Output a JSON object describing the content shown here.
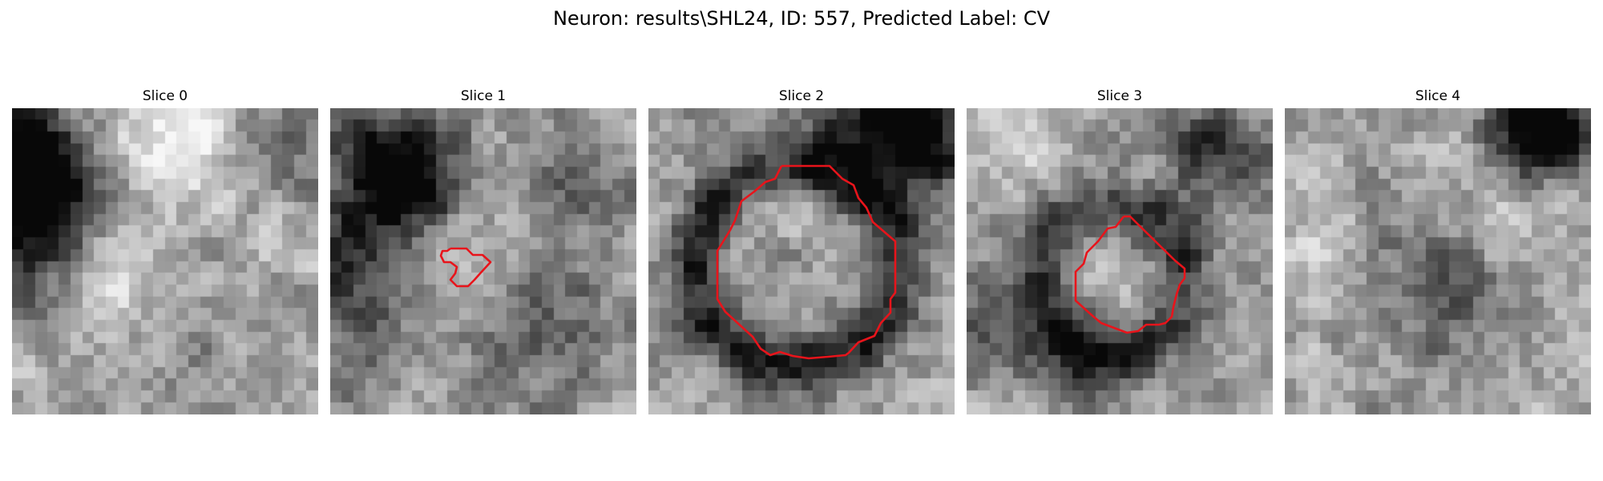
{
  "figure": {
    "title": "Neuron: results\\SHL24, ID: 557, Predicted Label: CV"
  },
  "slices": [
    {
      "label": "Slice 0",
      "has_roi": false,
      "pattern": {
        "seed": 11,
        "dark_spots": [
          [
            2,
            4,
            5,
            0.55
          ],
          [
            0,
            6,
            4,
            0.4
          ],
          [
            1,
            12,
            4,
            0.3
          ],
          [
            22,
            3,
            3,
            0.25
          ],
          [
            14,
            22,
            6,
            0.15
          ]
        ],
        "bright_spots": [
          [
            8,
            1,
            4,
            0.25
          ],
          [
            14,
            3,
            3,
            0.3
          ],
          [
            7,
            14,
            3,
            0.25
          ]
        ],
        "base": 0.68
      }
    },
    {
      "label": "Slice 1",
      "has_roi": true,
      "roi_color": "#e8141b",
      "pattern": {
        "seed": 23,
        "dark_spots": [
          [
            4,
            5,
            4,
            0.5
          ],
          [
            7,
            6,
            3,
            0.45
          ],
          [
            1,
            13,
            3,
            0.35
          ],
          [
            20,
            6,
            3,
            0.2
          ],
          [
            17,
            18,
            4,
            0.25
          ],
          [
            2,
            20,
            3,
            0.2
          ]
        ],
        "bright_spots": [
          [
            11,
            10,
            5,
            0.18
          ]
        ],
        "base": 0.6
      }
    },
    {
      "label": "Slice 2",
      "has_roi": true,
      "roi_color": "#e8141b",
      "pattern": {
        "seed": 37,
        "ring": [
          12,
          13,
          8.5,
          1.8,
          0.45
        ],
        "dark_spots": [
          [
            19,
            1,
            4,
            0.5
          ],
          [
            23,
            2,
            3,
            0.45
          ],
          [
            11,
            12,
            2,
            0.18
          ]
        ],
        "bright_spots": [
          [
            11,
            9,
            3,
            0.18
          ]
        ],
        "base": 0.62
      }
    },
    {
      "label": "Slice 3",
      "has_roi": true,
      "roi_color": "#e8141b",
      "pattern": {
        "seed": 51,
        "ring": [
          12,
          14,
          6,
          1.8,
          0.4
        ],
        "dark_spots": [
          [
            21,
            3,
            3,
            0.45
          ],
          [
            2,
            18,
            3,
            0.3
          ],
          [
            10,
            21,
            3,
            0.3
          ]
        ],
        "bright_spots": [
          [
            12,
            15,
            3,
            0.2
          ],
          [
            4,
            2,
            3,
            0.15
          ]
        ],
        "base": 0.62
      }
    },
    {
      "label": "Slice 4",
      "has_roi": false,
      "pattern": {
        "seed": 67,
        "dark_spots": [
          [
            20,
            2,
            3,
            0.55
          ],
          [
            23,
            1,
            3,
            0.45
          ],
          [
            10,
            10,
            4,
            0.2
          ],
          [
            14,
            17,
            4,
            0.22
          ]
        ],
        "bright_spots": [
          [
            17,
            6,
            4,
            0.2
          ],
          [
            3,
            12,
            3,
            0.15
          ]
        ],
        "base": 0.66
      }
    }
  ]
}
